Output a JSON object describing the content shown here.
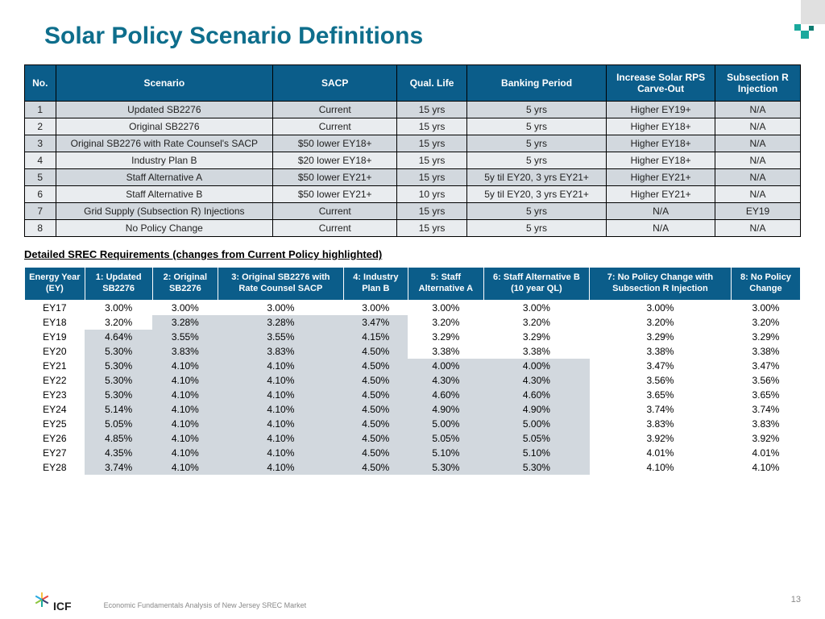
{
  "title": "Solar Policy Scenario Definitions",
  "top_table": {
    "headers": [
      "No.",
      "Scenario",
      "SACP",
      "Qual. Life",
      "Banking Period",
      "Increase Solar RPS Carve-Out",
      "Subsection R Injection"
    ],
    "col_widths": [
      "4%",
      "28%",
      "16%",
      "9%",
      "18%",
      "14%",
      "11%"
    ],
    "rows": [
      [
        "1",
        "Updated SB2276",
        "Current",
        "15 yrs",
        "5 yrs",
        "Higher EY19+",
        "N/A"
      ],
      [
        "2",
        "Original SB2276",
        "Current",
        "15 yrs",
        "5 yrs",
        "Higher EY18+",
        "N/A"
      ],
      [
        "3",
        "Original SB2276 with Rate Counsel's SACP",
        "$50 lower EY18+",
        "15 yrs",
        "5 yrs",
        "Higher EY18+",
        "N/A"
      ],
      [
        "4",
        "Industry Plan B",
        "$20 lower EY18+",
        "15 yrs",
        "5 yrs",
        "Higher EY18+",
        "N/A"
      ],
      [
        "5",
        "Staff Alternative A",
        "$50 lower EY21+",
        "15 yrs",
        "5y til EY20, 3 yrs EY21+",
        "Higher EY21+",
        "N/A"
      ],
      [
        "6",
        "Staff Alternative B",
        "$50 lower EY21+",
        "10 yrs",
        "5y til EY20, 3 yrs EY21+",
        "Higher EY21+",
        "N/A"
      ],
      [
        "7",
        "Grid Supply (Subsection R) Injections",
        "Current",
        "15 yrs",
        "5 yrs",
        "N/A",
        "EY19"
      ],
      [
        "8",
        "No Policy Change",
        "Current",
        "15 yrs",
        "5 yrs",
        "N/A",
        "N/A"
      ]
    ]
  },
  "subtitle": "Detailed SREC Requirements (changes from Current Policy highlighted)",
  "bot_table": {
    "headers": [
      "Energy Year (EY)",
      "1: Updated SB2276",
      "2: Original SB2276",
      "3: Original SB2276 with Rate Counsel SACP",
      "4: Industry Plan B",
      "5: Staff Alternative A",
      "6: Staff Alternative B (10 year QL)",
      "7: No Policy Change with Subsection R Injection",
      "8: No Policy Change"
    ],
    "rows": [
      {
        "ey": "EY17",
        "v": [
          "3.00%",
          "3.00%",
          "3.00%",
          "3.00%",
          "3.00%",
          "3.00%",
          "3.00%",
          "3.00%"
        ],
        "hl": [
          0,
          0,
          0,
          0,
          0,
          0,
          0,
          0
        ]
      },
      {
        "ey": "EY18",
        "v": [
          "3.20%",
          "3.28%",
          "3.28%",
          "3.47%",
          "3.20%",
          "3.20%",
          "3.20%",
          "3.20%"
        ],
        "hl": [
          0,
          1,
          1,
          1,
          0,
          0,
          0,
          0
        ]
      },
      {
        "ey": "EY19",
        "v": [
          "4.64%",
          "3.55%",
          "3.55%",
          "4.15%",
          "3.29%",
          "3.29%",
          "3.29%",
          "3.29%"
        ],
        "hl": [
          1,
          1,
          1,
          1,
          0,
          0,
          0,
          0
        ]
      },
      {
        "ey": "EY20",
        "v": [
          "5.30%",
          "3.83%",
          "3.83%",
          "4.50%",
          "3.38%",
          "3.38%",
          "3.38%",
          "3.38%"
        ],
        "hl": [
          1,
          1,
          1,
          1,
          0,
          0,
          0,
          0
        ]
      },
      {
        "ey": "EY21",
        "v": [
          "5.30%",
          "4.10%",
          "4.10%",
          "4.50%",
          "4.00%",
          "4.00%",
          "3.47%",
          "3.47%"
        ],
        "hl": [
          1,
          1,
          1,
          1,
          1,
          1,
          0,
          0
        ]
      },
      {
        "ey": "EY22",
        "v": [
          "5.30%",
          "4.10%",
          "4.10%",
          "4.50%",
          "4.30%",
          "4.30%",
          "3.56%",
          "3.56%"
        ],
        "hl": [
          1,
          1,
          1,
          1,
          1,
          1,
          0,
          0
        ]
      },
      {
        "ey": "EY23",
        "v": [
          "5.30%",
          "4.10%",
          "4.10%",
          "4.50%",
          "4.60%",
          "4.60%",
          "3.65%",
          "3.65%"
        ],
        "hl": [
          1,
          1,
          1,
          1,
          1,
          1,
          0,
          0
        ]
      },
      {
        "ey": "EY24",
        "v": [
          "5.14%",
          "4.10%",
          "4.10%",
          "4.50%",
          "4.90%",
          "4.90%",
          "3.74%",
          "3.74%"
        ],
        "hl": [
          1,
          1,
          1,
          1,
          1,
          1,
          0,
          0
        ]
      },
      {
        "ey": "EY25",
        "v": [
          "5.05%",
          "4.10%",
          "4.10%",
          "4.50%",
          "5.00%",
          "5.00%",
          "3.83%",
          "3.83%"
        ],
        "hl": [
          1,
          1,
          1,
          1,
          1,
          1,
          0,
          0
        ]
      },
      {
        "ey": "EY26",
        "v": [
          "4.85%",
          "4.10%",
          "4.10%",
          "4.50%",
          "5.05%",
          "5.05%",
          "3.92%",
          "3.92%"
        ],
        "hl": [
          1,
          1,
          1,
          1,
          1,
          1,
          0,
          0
        ]
      },
      {
        "ey": "EY27",
        "v": [
          "4.35%",
          "4.10%",
          "4.10%",
          "4.50%",
          "5.10%",
          "5.10%",
          "4.01%",
          "4.01%"
        ],
        "hl": [
          1,
          1,
          1,
          1,
          1,
          1,
          0,
          0
        ]
      },
      {
        "ey": "EY28",
        "v": [
          "3.74%",
          "4.10%",
          "4.10%",
          "4.50%",
          "5.30%",
          "5.30%",
          "4.10%",
          "4.10%"
        ],
        "hl": [
          1,
          1,
          1,
          1,
          1,
          1,
          0,
          0
        ]
      }
    ]
  },
  "footer_caption": "Economic Fundamentals Analysis of New Jersey SREC Market",
  "page_number": "13",
  "logo_text": "ICF",
  "logo_colors": [
    "#f6c142",
    "#e9483e",
    "#3b3b6d",
    "#1aa99d",
    "#8cc63f",
    "#26a9e0"
  ]
}
